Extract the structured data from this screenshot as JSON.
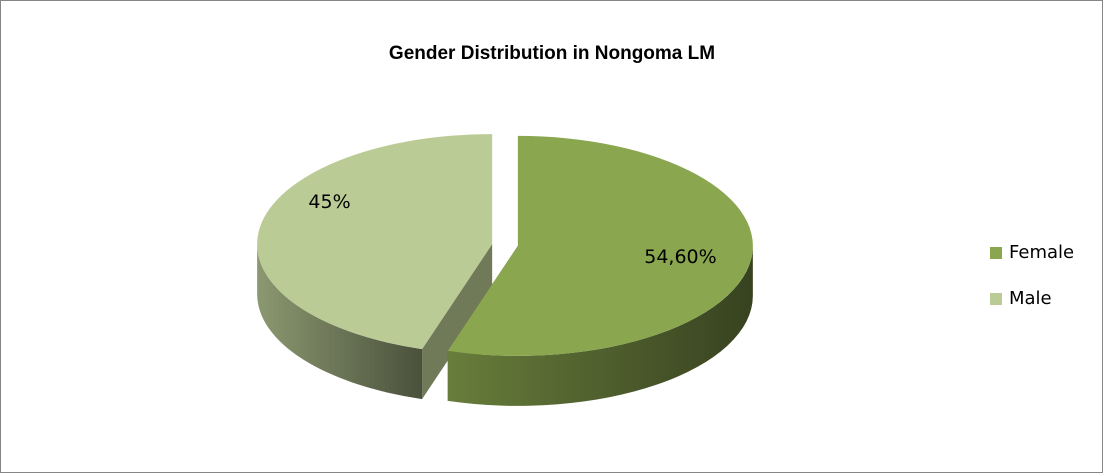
{
  "chart_data": {
    "type": "pie",
    "title": "Gender Distribution in Nongoma LM",
    "categories": [
      "Female",
      "Male"
    ],
    "values": [
      54.6,
      45
    ],
    "value_labels": [
      "54,60%",
      "45%"
    ],
    "colors": [
      "#8aa64f",
      "#bacb95"
    ],
    "legend": "right"
  }
}
